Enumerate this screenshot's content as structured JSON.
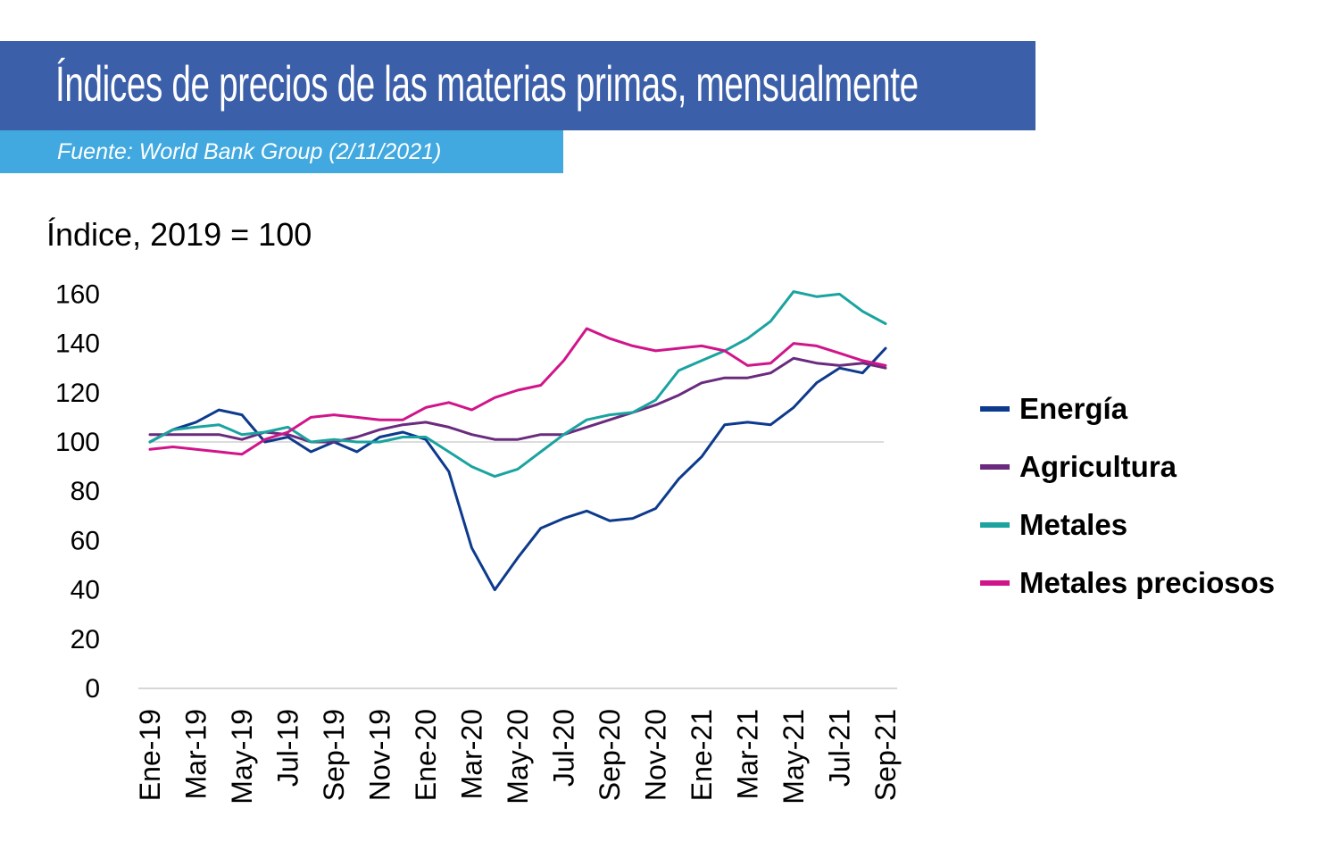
{
  "header": {
    "title": "Índices de precios de las materias primas, mensualmente",
    "source": "Fuente: World Bank Group (2/11/2021)"
  },
  "colors": {
    "title_bg": "#3b5fa8",
    "source_bg": "#41a9df",
    "axis": "#c8c8c8"
  },
  "chart_data": {
    "type": "line",
    "title": "Índices de precios de las materias primas, mensualmente",
    "subtitle": "Fuente: World Bank Group (2/11/2021)",
    "ylabel": "Índice, 2019 = 100",
    "xlabel": "",
    "ylim": [
      0,
      160
    ],
    "yticks": [
      "0",
      "20",
      "40",
      "60",
      "80",
      "100",
      "120",
      "140",
      "160"
    ],
    "x": [
      "Ene-19",
      "Feb-19",
      "Mar-19",
      "Abr-19",
      "May-19",
      "Jun-19",
      "Jul-19",
      "Ago-19",
      "Sep-19",
      "Oct-19",
      "Nov-19",
      "Dic-19",
      "Ene-20",
      "Feb-20",
      "Mar-20",
      "Abr-20",
      "May-20",
      "Jun-20",
      "Jul-20",
      "Ago-20",
      "Sep-20",
      "Oct-20",
      "Nov-20",
      "Dic-20",
      "Ene-21",
      "Feb-21",
      "Mar-21",
      "Abr-21",
      "May-21",
      "Jun-21",
      "Jul-21",
      "Ago-21",
      "Sep-21"
    ],
    "xtick_labels": [
      "Ene-19",
      "Mar-19",
      "May-19",
      "Jul-19",
      "Sep-19",
      "Nov-19",
      "Ene-20",
      "Mar-20",
      "May-20",
      "Jul-20",
      "Sep-20",
      "Nov-20",
      "Ene-21",
      "Mar-21",
      "May-21",
      "Jul-21",
      "Sep-21"
    ],
    "reference_line": 100,
    "grid": false,
    "legend_position": "right",
    "series": [
      {
        "name": "Energía",
        "color": "#0d3a8c",
        "values": [
          100,
          105,
          108,
          113,
          111,
          100,
          102,
          96,
          100,
          96,
          102,
          104,
          101,
          88,
          57,
          40,
          53,
          65,
          69,
          72,
          68,
          69,
          73,
          85,
          94,
          107,
          108,
          107,
          114,
          124,
          130,
          128,
          138
        ]
      },
      {
        "name": "Agricultura",
        "color": "#6a2b7e",
        "values": [
          103,
          103,
          103,
          103,
          101,
          104,
          103,
          100,
          100,
          102,
          105,
          107,
          108,
          106,
          103,
          101,
          101,
          103,
          103,
          106,
          109,
          112,
          115,
          119,
          124,
          126,
          126,
          128,
          134,
          132,
          131,
          132,
          130
        ]
      },
      {
        "name": "Metales",
        "color": "#1aa39f",
        "values": [
          100,
          105,
          106,
          107,
          103,
          104,
          106,
          100,
          101,
          100,
          100,
          102,
          102,
          96,
          90,
          86,
          89,
          96,
          103,
          109,
          111,
          112,
          117,
          129,
          133,
          137,
          142,
          149,
          161,
          159,
          160,
          153,
          148
        ]
      },
      {
        "name": "Metales preciosos",
        "color": "#d0158a",
        "values": [
          97,
          98,
          97,
          96,
          95,
          101,
          104,
          110,
          111,
          110,
          109,
          109,
          114,
          116,
          113,
          118,
          121,
          123,
          133,
          146,
          142,
          139,
          137,
          138,
          139,
          137,
          131,
          132,
          140,
          139,
          136,
          133,
          131
        ]
      }
    ]
  }
}
